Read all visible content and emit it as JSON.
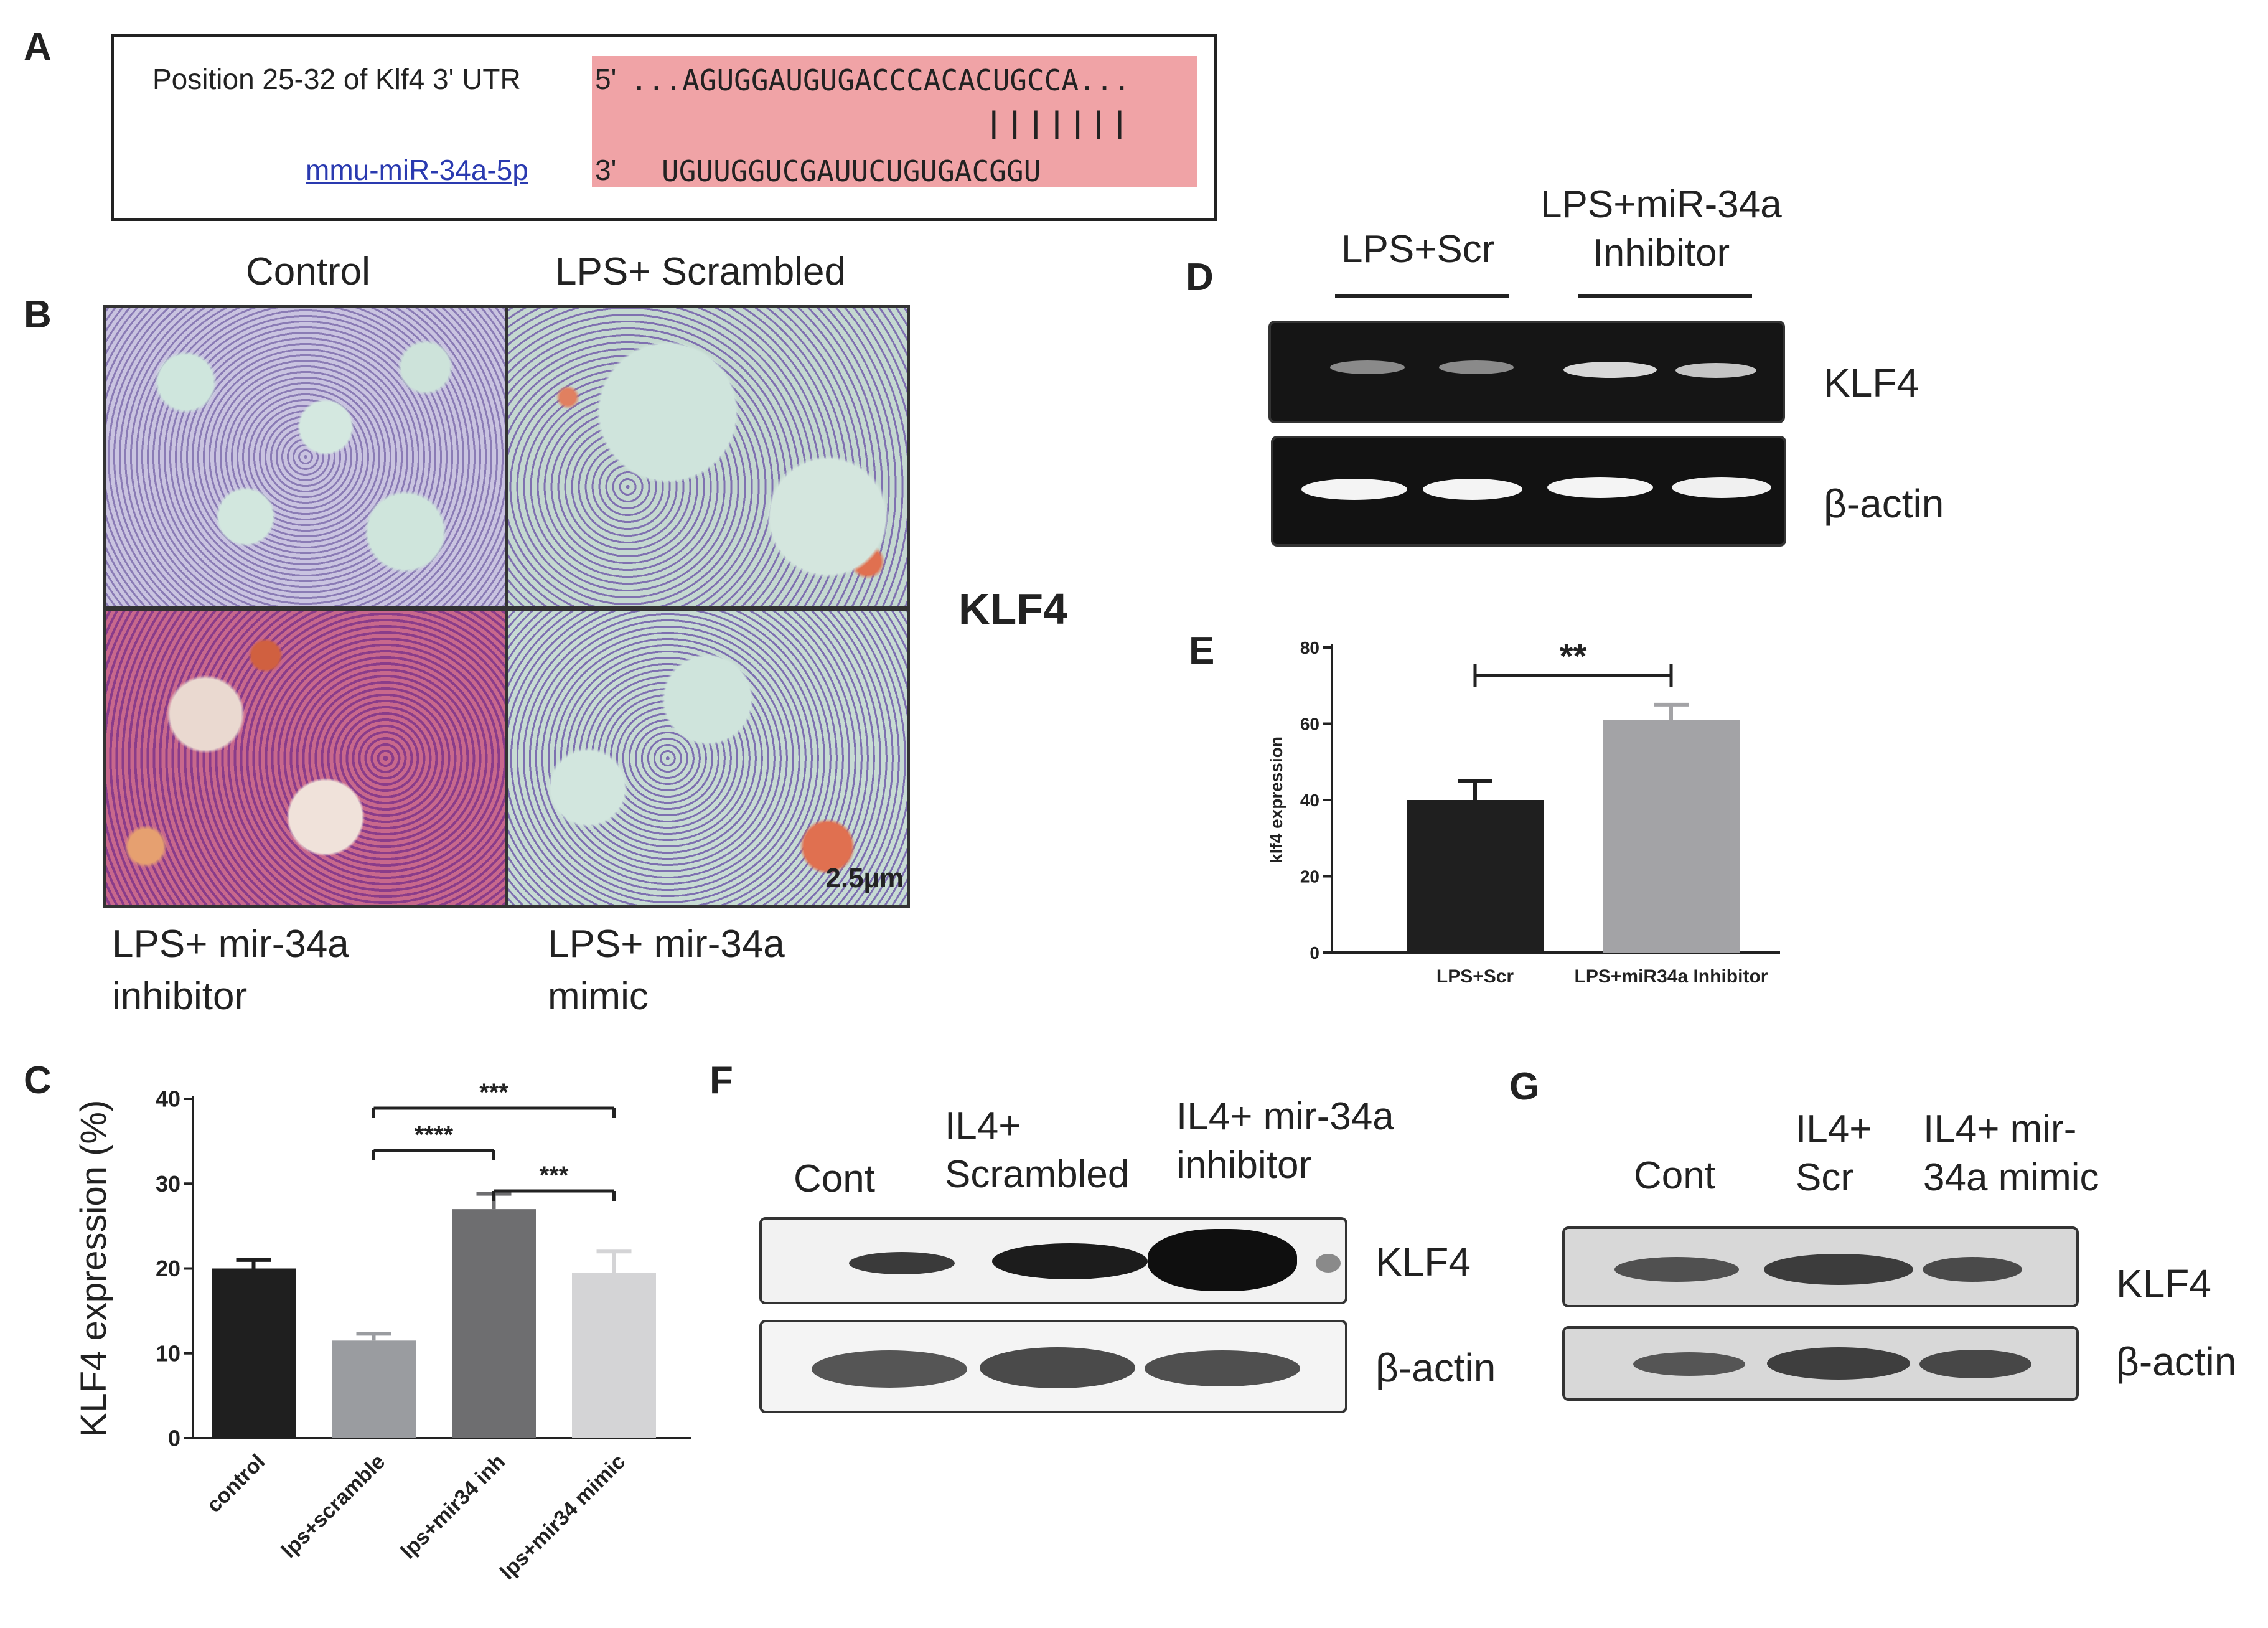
{
  "panel_labels": {
    "a": "A",
    "b": "B",
    "c": "C",
    "d": "D",
    "e": "E",
    "f": "F",
    "g": "G"
  },
  "panel_a": {
    "position_label": "Position 25-32 of Klf4 3' UTR",
    "mirna_name": "mmu-miR-34a-5p",
    "utr_prefix": "5'",
    "utr_sequence": "...AGUGGAUGUGACCCACACUGCCA...",
    "pairing": "|||||||",
    "mirna_prefix": "3'",
    "mirna_sequence": "UGUUGGUCGAUUCUGUGACGGU",
    "highlight_color": "#f0a3a6"
  },
  "panel_b": {
    "top_left_title": "Control",
    "top_right_title": "LPS+ Scrambled",
    "bottom_left_caption_1": "LPS+ mir-34a",
    "bottom_left_caption_2": "inhibitor",
    "bottom_right_caption_1": "LPS+ mir-34a",
    "bottom_right_caption_2": "mimic",
    "stain_label": "KLF4",
    "scale_bar": "2.5µm"
  },
  "panel_d": {
    "group1": "LPS+Scr",
    "group2_line1": "LPS+miR-34a",
    "group2_line2": "Inhibitor",
    "band1": "KLF4",
    "band2": "β-actin"
  },
  "panel_f": {
    "lane1": "Cont",
    "lane2_line1": "IL4+",
    "lane2_line2": "Scrambled",
    "lane3_line1": "IL4+ mir-34a",
    "lane3_line2": "inhibitor",
    "band1": "KLF4",
    "band2": "β-actin"
  },
  "panel_g": {
    "lane1": "Cont",
    "lane2_line1": "IL4+",
    "lane2_line2": "Scr",
    "lane3_line1": "IL4+ mir-",
    "lane3_line2": "34a mimic",
    "band1": "KLF4",
    "band2": "β-actin"
  },
  "chart_data": [
    {
      "panel": "C",
      "type": "bar",
      "categories": [
        "control",
        "lps+scramble",
        "lps+mir34 inh",
        "lps+mir34 mimic"
      ],
      "values": [
        20,
        11.5,
        27,
        19.5
      ],
      "errors": [
        1,
        0.8,
        1.8,
        2.5
      ],
      "bar_colors": [
        "#1f1f1f",
        "#9a9ca0",
        "#6e6e70",
        "#d4d4d6"
      ],
      "ylabel": "KLF4 expression (%)",
      "ylim": [
        0,
        40
      ],
      "yticks": [
        "0",
        "10",
        "20",
        "30",
        "40"
      ],
      "significance": [
        {
          "from": 1,
          "to": 3,
          "label": "***"
        },
        {
          "from": 1,
          "to": 2,
          "label": "****"
        },
        {
          "from": 2,
          "to": 3,
          "label": "***"
        }
      ]
    },
    {
      "panel": "E",
      "type": "bar",
      "categories": [
        "LPS+Scr",
        "LPS+miR34a Inhibitor"
      ],
      "values": [
        40,
        61
      ],
      "errors": [
        5,
        4
      ],
      "bar_colors": [
        "#1f1f1f",
        "#a3a3a6"
      ],
      "ylabel": "klf4 expression",
      "ylim": [
        0,
        80
      ],
      "yticks": [
        "0",
        "20",
        "40",
        "60",
        "80"
      ],
      "significance": [
        {
          "from": 0,
          "to": 1,
          "label": "**"
        }
      ]
    }
  ]
}
